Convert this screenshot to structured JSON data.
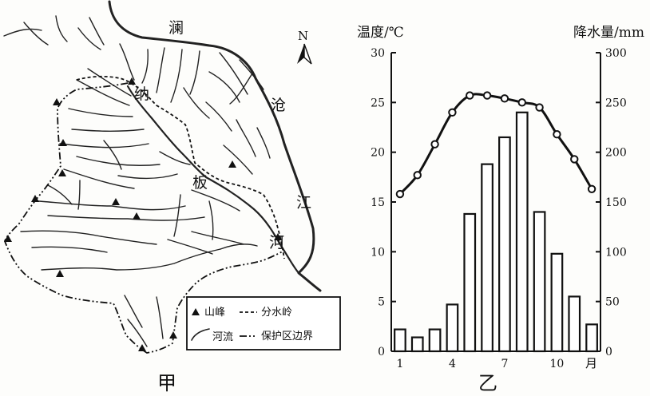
{
  "map": {
    "caption": "甲",
    "north_label": "N",
    "labels": {
      "lancang_1": "澜",
      "lancang_2": "沧",
      "lancang_3": "江",
      "naban_1": "纳",
      "naban_2": "板",
      "naban_3": "河"
    },
    "legend": [
      {
        "symbol": "peak-triangle",
        "label": "山峰"
      },
      {
        "symbol": "dashed-line",
        "label": "分水岭"
      },
      {
        "symbol": "river-line",
        "label": "河流"
      },
      {
        "symbol": "dash-dot-line",
        "label": "保护区边界"
      }
    ]
  },
  "climate_chart": {
    "caption": "乙",
    "left_axis_title": "温度/℃",
    "right_axis_title": "降水量/mm",
    "x_axis_unit": "月"
  },
  "chart_data": {
    "type": "bar",
    "categories": [
      "1",
      "2",
      "3",
      "4",
      "5",
      "6",
      "7",
      "8",
      "9",
      "10",
      "11",
      "12"
    ],
    "x_tick_labels": [
      "1",
      "4",
      "7",
      "10"
    ],
    "series": [
      {
        "type": "bar",
        "axis": "right",
        "values": [
          22,
          14,
          22,
          47,
          138,
          188,
          215,
          240,
          140,
          98,
          55,
          27
        ]
      },
      {
        "type": "line",
        "axis": "left",
        "values": [
          15.8,
          17.7,
          20.8,
          24.0,
          25.7,
          25.7,
          25.4,
          25.0,
          24.5,
          21.8,
          19.3,
          16.3
        ]
      }
    ],
    "ylim_left": [
      0,
      30
    ],
    "yticks_left": [
      0,
      5,
      10,
      15,
      20,
      25,
      30
    ],
    "ylim_right": [
      0,
      300
    ],
    "yticks_right": [
      0,
      50,
      100,
      150,
      200,
      250,
      300
    ],
    "ylabel": "温度/℃",
    "ylabel_right": "降水量/mm",
    "xlabel": "月",
    "grid": false
  }
}
